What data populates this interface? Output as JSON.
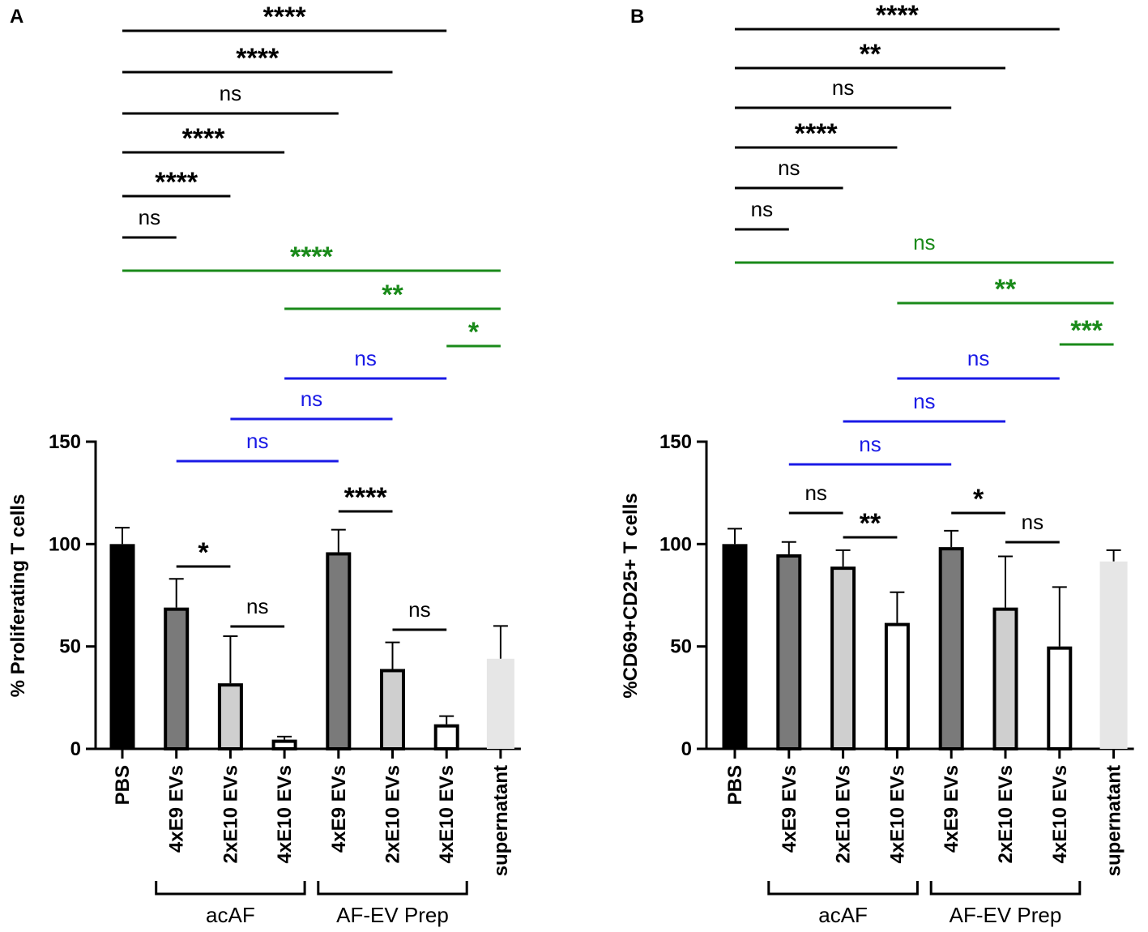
{
  "colors": {
    "black": "#000000",
    "green": "#1a8a1a",
    "blue": "#1a1ae6",
    "bar_dark": "#7a7a7a",
    "bar_light": "#cfcfcf",
    "bar_white": "#ffffff",
    "bar_supernatant": "#e6e6e6"
  },
  "chart_data": [
    {
      "panel": "A",
      "type": "bar",
      "ylabel": "% Proliferating T cells",
      "ylim": [
        0,
        150
      ],
      "yticks": [
        "0",
        "50",
        "100",
        "150"
      ],
      "categories": [
        "PBS",
        "4xE9 EVs",
        "2xE10 EVs",
        "4xE10 EVs",
        "4xE9 EVs",
        "2xE10 EVs",
        "4xE10 EVs",
        "supernatant"
      ],
      "values": [
        100,
        69,
        32,
        4.5,
        96,
        39,
        12,
        44
      ],
      "errors": [
        8,
        14,
        23,
        1.5,
        11,
        13,
        4,
        16
      ],
      "fills": [
        "black",
        "bar_dark",
        "bar_light",
        "bar_white",
        "bar_dark",
        "bar_light",
        "bar_white",
        "bar_supernatant"
      ],
      "groups": [
        {
          "label": "acAF",
          "from": 1,
          "to": 3
        },
        {
          "label": "AF-EV Prep",
          "from": 4,
          "to": 6
        }
      ],
      "comparisons": [
        {
          "from": 0,
          "to": 6,
          "label": "****",
          "color": "black"
        },
        {
          "from": 0,
          "to": 5,
          "label": "****",
          "color": "black"
        },
        {
          "from": 0,
          "to": 4,
          "label": "ns",
          "color": "black"
        },
        {
          "from": 0,
          "to": 3,
          "label": "****",
          "color": "black"
        },
        {
          "from": 0,
          "to": 2,
          "label": "****",
          "color": "black"
        },
        {
          "from": 0,
          "to": 1,
          "label": "ns",
          "color": "black"
        },
        {
          "from": 0,
          "to": 7,
          "label": "****",
          "color": "green"
        },
        {
          "from": 3,
          "to": 7,
          "label": "**",
          "color": "green"
        },
        {
          "from": 6,
          "to": 7,
          "label": "*",
          "color": "green"
        },
        {
          "from": 3,
          "to": 6,
          "label": "ns",
          "color": "blue"
        },
        {
          "from": 2,
          "to": 5,
          "label": "ns",
          "color": "blue"
        },
        {
          "from": 1,
          "to": 4,
          "label": "ns",
          "color": "blue"
        },
        {
          "from": 4,
          "to": 5,
          "label": "****",
          "color": "black"
        },
        {
          "from": 1,
          "to": 2,
          "label": "*",
          "color": "black"
        },
        {
          "from": 2,
          "to": 3,
          "label": "ns",
          "color": "black"
        },
        {
          "from": 5,
          "to": 6,
          "label": "ns",
          "color": "black"
        }
      ]
    },
    {
      "panel": "B",
      "type": "bar",
      "ylabel": "%CD69+CD25+  T cells",
      "ylim": [
        0,
        150
      ],
      "yticks": [
        "0",
        "50",
        "100",
        "150"
      ],
      "categories": [
        "PBS",
        "4xE9 EVs",
        "2xE10 EVs",
        "4xE10 EVs",
        "4xE9 EVs",
        "2xE10 EVs",
        "4xE10 EVs",
        "supernatant"
      ],
      "values": [
        100,
        95,
        89,
        61.5,
        98.5,
        69,
        50,
        91.5
      ],
      "errors": [
        7.5,
        6,
        8,
        15,
        8,
        25,
        29,
        5.5
      ],
      "fills": [
        "black",
        "bar_dark",
        "bar_light",
        "bar_white",
        "bar_dark",
        "bar_light",
        "bar_white",
        "bar_supernatant"
      ],
      "groups": [
        {
          "label": "acAF",
          "from": 1,
          "to": 3
        },
        {
          "label": "AF-EV Prep",
          "from": 4,
          "to": 6
        }
      ],
      "comparisons": [
        {
          "from": 0,
          "to": 6,
          "label": "****",
          "color": "black"
        },
        {
          "from": 0,
          "to": 5,
          "label": "**",
          "color": "black"
        },
        {
          "from": 0,
          "to": 4,
          "label": "ns",
          "color": "black"
        },
        {
          "from": 0,
          "to": 3,
          "label": "****",
          "color": "black"
        },
        {
          "from": 0,
          "to": 2,
          "label": "ns",
          "color": "black"
        },
        {
          "from": 0,
          "to": 1,
          "label": "ns",
          "color": "black"
        },
        {
          "from": 0,
          "to": 7,
          "label": "ns",
          "color": "green"
        },
        {
          "from": 3,
          "to": 7,
          "label": "**",
          "color": "green"
        },
        {
          "from": 6,
          "to": 7,
          "label": "***",
          "color": "green"
        },
        {
          "from": 3,
          "to": 6,
          "label": "ns",
          "color": "blue"
        },
        {
          "from": 2,
          "to": 5,
          "label": "ns",
          "color": "blue"
        },
        {
          "from": 1,
          "to": 4,
          "label": "ns",
          "color": "blue"
        },
        {
          "from": 1,
          "to": 2,
          "label": "ns",
          "color": "black"
        },
        {
          "from": 2,
          "to": 3,
          "label": "**",
          "color": "black"
        },
        {
          "from": 4,
          "to": 5,
          "label": "*",
          "color": "black"
        },
        {
          "from": 5,
          "to": 6,
          "label": "ns",
          "color": "black"
        }
      ]
    }
  ]
}
